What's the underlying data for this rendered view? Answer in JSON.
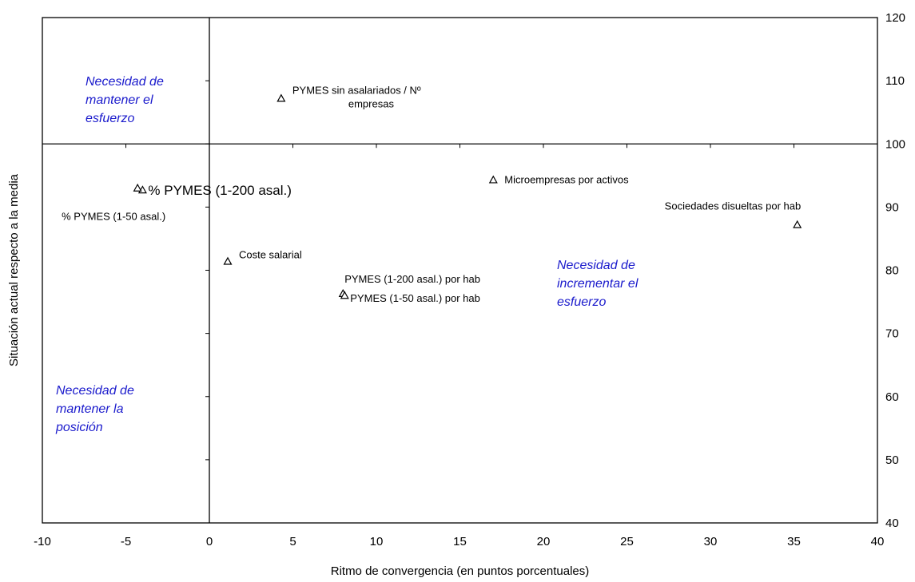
{
  "chart_data": {
    "type": "scatter",
    "title": "",
    "xlabel": "Ritmo de convergencia (en puntos porcentuales)",
    "ylabel": "Situación actual respecto a la media",
    "xlim": [
      -10,
      40
    ],
    "ylim": [
      40,
      120
    ],
    "x_ticks": [
      "-10",
      "-5",
      "0",
      "5",
      "10",
      "15",
      "20",
      "25",
      "30",
      "35",
      "40"
    ],
    "y_ticks": [
      "40",
      "50",
      "60",
      "70",
      "80",
      "90",
      "100",
      "110",
      "120"
    ],
    "reference_lines": {
      "x": 0,
      "y": 100
    },
    "grid": false,
    "legend": "none",
    "marker": "triangle",
    "points": [
      {
        "label_lines": [
          "PYMES sin asalariados / Nº",
          "empresas"
        ],
        "x": 4.3,
        "y": 107.2
      },
      {
        "label_lines": [
          "% PYMES (1-200 asal.)"
        ],
        "x": -4.0,
        "y": 92.7,
        "label_size": "large"
      },
      {
        "label_lines": [
          "% PYMES (1-50 asal.)"
        ],
        "x": -4.3,
        "y": 93.0
      },
      {
        "label_lines": [
          "Microempresas por activos"
        ],
        "x": 17.0,
        "y": 94.3
      },
      {
        "label_lines": [
          "Sociedades disueltas por hab"
        ],
        "x": 35.2,
        "y": 87.2
      },
      {
        "label_lines": [
          "Coste salarial"
        ],
        "x": 1.1,
        "y": 81.4
      },
      {
        "label_lines": [
          "PYMES (1-200 asal.) por hab"
        ],
        "x": 8.0,
        "y": 76.3
      },
      {
        "label_lines": [
          "PYMES (1-50 asal.) por hab"
        ],
        "x": 8.1,
        "y": 76.0
      }
    ],
    "quadrant_labels": [
      {
        "lines": [
          "Necesidad de",
          "mantener el",
          "esfuerzo"
        ],
        "color": "#1a1acc"
      },
      {
        "lines": [
          "Necesidad de",
          "incrementar el",
          "esfuerzo"
        ],
        "color": "#1a1acc"
      },
      {
        "lines": [
          "Necesidad de",
          "mantener la",
          "posición"
        ],
        "color": "#1a1acc"
      }
    ],
    "colors": {
      "axis": "#000000",
      "marker_fill": "#ffffff",
      "marker_stroke": "#000000",
      "quadrant_text": "#1a1acc"
    }
  }
}
